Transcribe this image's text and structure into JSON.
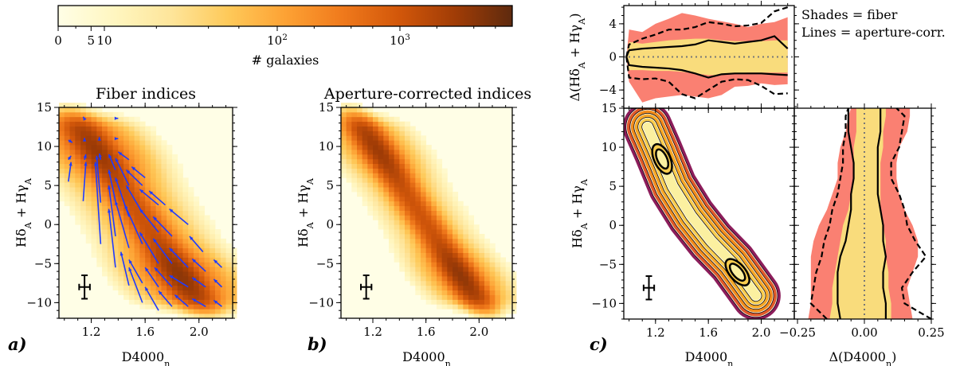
{
  "colormap": [
    "#fffee6",
    "#fff6c0",
    "#fee59a",
    "#fec959",
    "#fda234",
    "#f07a1c",
    "#d2570a",
    "#a03c06",
    "#5e2a0e"
  ],
  "colorbar": {
    "label": "# galaxies",
    "ticks": [
      {
        "value": 0,
        "label": "0"
      },
      {
        "value": 5,
        "label": "5"
      },
      {
        "value": 10,
        "label": "10"
      },
      {
        "value": 100,
        "label": "10^2"
      },
      {
        "value": 1000,
        "label": "10^3"
      }
    ],
    "max": 8000
  },
  "panel_labels": [
    "a)",
    "b)",
    "c)"
  ],
  "legend": {
    "line1": "Shades = fiber",
    "line2": "Lines = aperture-corr."
  },
  "contour_colors": [
    "#8c1d5b",
    "#e05a2a",
    "#f28c1c",
    "#f6a828",
    "#f9cd4f",
    "#fbf0a0"
  ],
  "shade_colors": {
    "outer": "#fa8072",
    "inner": "#f9dc7c"
  },
  "chart_data": [
    {
      "id": "a",
      "type": "heatmap",
      "title": "Fiber indices",
      "xlabel": "D4000_n",
      "ylabel": "Hδ_A + Hγ_A",
      "xlim": [
        0.96,
        2.25
      ],
      "ylim": [
        -12,
        15
      ],
      "xticks": [
        1.2,
        1.6,
        2.0
      ],
      "yticks": [
        -10,
        -5,
        0,
        5,
        10,
        15
      ],
      "density_peaks": [
        {
          "x": 1.2,
          "y": 10
        },
        {
          "x": 1.88,
          "y": -7
        }
      ],
      "errorbar": {
        "x": 1.15,
        "y": -8,
        "xerr": 0.04,
        "yerr": 1.5
      },
      "quiver_color": "#1f3bff",
      "quiver": [
        [
          1.03,
          5.5,
          0.02,
          2.5
        ],
        [
          1.03,
          8.3,
          0.02,
          0.5
        ],
        [
          1.03,
          10.8,
          0.03,
          -0.3
        ],
        [
          1.14,
          3,
          0.02,
          5
        ],
        [
          1.15,
          8.3,
          0.01,
          0.7
        ],
        [
          1.15,
          10.8,
          0.0,
          0.3
        ],
        [
          1.15,
          13.5,
          -0.01,
          0.3
        ],
        [
          1.27,
          -2.5,
          -0.04,
          10.5
        ],
        [
          1.27,
          2.8,
          -0.03,
          6
        ],
        [
          1.27,
          8.3,
          -0.01,
          0.8
        ],
        [
          1.26,
          11,
          0,
          0.2
        ],
        [
          1.38,
          -5.5,
          -0.05,
          7.5
        ],
        [
          1.38,
          -1.5,
          -0.05,
          6.5
        ],
        [
          1.38,
          3,
          -0.05,
          4
        ],
        [
          1.38,
          7,
          -0.05,
          2
        ],
        [
          1.38,
          11,
          0.02,
          0
        ],
        [
          1.38,
          13.6,
          0.02,
          0
        ],
        [
          1.48,
          -7.8,
          -0.06,
          4.3
        ],
        [
          1.48,
          -3,
          -0.1,
          6
        ],
        [
          1.48,
          1,
          -0.1,
          5
        ],
        [
          1.48,
          5,
          -0.1,
          3.5
        ],
        [
          1.48,
          8.3,
          -0.08,
          1
        ],
        [
          1.58,
          -10,
          -0.1,
          4.5
        ],
        [
          1.58,
          -7.5,
          -0.1,
          3
        ],
        [
          1.58,
          -2.5,
          -0.13,
          5
        ],
        [
          1.58,
          1.5,
          -0.12,
          3.5
        ],
        [
          1.58,
          5,
          -0.12,
          2
        ],
        [
          1.7,
          -11,
          -0.1,
          3
        ],
        [
          1.7,
          -8,
          -0.1,
          2.5
        ],
        [
          1.7,
          -5,
          -0.14,
          4
        ],
        [
          1.7,
          -1,
          -0.14,
          3
        ],
        [
          1.7,
          2.5,
          -0.14,
          2
        ],
        [
          1.6,
          6,
          -0.1,
          1.4
        ],
        [
          1.8,
          -10.5,
          -0.1,
          2
        ],
        [
          1.8,
          -8,
          -0.13,
          2.5
        ],
        [
          1.8,
          -5,
          -0.14,
          3.2
        ],
        [
          1.8,
          -1.5,
          -0.14,
          2.5
        ],
        [
          1.75,
          2.5,
          -0.12,
          1.8
        ],
        [
          1.92,
          -10.5,
          -0.1,
          1.5
        ],
        [
          1.92,
          -8,
          -0.14,
          1.5
        ],
        [
          1.92,
          -5.5,
          -0.14,
          2.5
        ],
        [
          1.92,
          0,
          -0.14,
          2
        ],
        [
          2.05,
          -10.5,
          -0.1,
          1
        ],
        [
          2.05,
          -8,
          -0.1,
          1.2
        ],
        [
          2.05,
          -6,
          -0.1,
          1.6
        ],
        [
          2.03,
          -3.5,
          -0.1,
          2
        ],
        [
          2.17,
          -10.5,
          -0.06,
          0.8
        ],
        [
          2.17,
          -8,
          -0.06,
          1
        ],
        [
          2.17,
          -5.5,
          -0.06,
          1
        ]
      ]
    },
    {
      "id": "b",
      "type": "heatmap",
      "title": "Aperture-corrected indices",
      "xlabel": "D4000_n",
      "ylabel": "Hδ_A + Hγ_A",
      "xlim": [
        0.96,
        2.25
      ],
      "ylim": [
        -12,
        15
      ],
      "xticks": [
        1.2,
        1.6,
        2.0
      ],
      "yticks": [
        -10,
        -5,
        0,
        5,
        10,
        15
      ],
      "density_peaks": [
        {
          "x": 1.22,
          "y": 9.5
        },
        {
          "x": 1.83,
          "y": -6
        }
      ],
      "errorbar": {
        "x": 1.15,
        "y": -8,
        "xerr": 0.04,
        "yerr": 1.5
      }
    },
    {
      "id": "c-main",
      "type": "contour",
      "xlabel": "D4000_n",
      "ylabel": "Hδ_A + Hγ_A",
      "xlim": [
        0.96,
        2.25
      ],
      "ylim": [
        -12,
        15
      ],
      "xticks": [
        1.2,
        1.6,
        2.0
      ],
      "yticks": [
        -10,
        -5,
        0,
        5,
        10,
        15
      ],
      "density_peaks": [
        {
          "x": 1.25,
          "y": 8.5
        },
        {
          "x": 1.82,
          "y": -6
        }
      ],
      "errorbar": {
        "x": 1.15,
        "y": -8,
        "xerr": 0.04,
        "yerr": 1.5
      }
    },
    {
      "id": "c-top",
      "type": "area",
      "ylabel": "Δ(Hδ_A + Hγ_A)",
      "xlim": [
        0.96,
        2.25
      ],
      "ylim": [
        -6.2,
        6.2
      ],
      "yticks": [
        -4,
        0,
        4
      ],
      "x": [
        1.0,
        1.1,
        1.2,
        1.3,
        1.4,
        1.5,
        1.6,
        1.7,
        1.8,
        1.9,
        2.0,
        2.1,
        2.2
      ],
      "shade_outer_upper": [
        3.3,
        3.0,
        4.0,
        4.6,
        5.3,
        5.0,
        4.6,
        4.3,
        4.0,
        3.6,
        4.0,
        4.2,
        4.8
      ],
      "shade_outer_lower": [
        -3,
        -5.5,
        -5,
        -4.8,
        -4.6,
        -4.8,
        -5,
        -4.6,
        -3.6,
        -3.5,
        -3.2,
        -3.4,
        -3.3
      ],
      "shade_inner_upper": [
        1.8,
        1.6,
        1.8,
        2.0,
        2.1,
        2.2,
        2.2,
        2.0,
        1.9,
        1.9,
        1.9,
        2.0,
        2.0
      ],
      "shade_inner_lower": [
        -1.6,
        -1.6,
        -1.7,
        -1.7,
        -1.8,
        -2.0,
        -2.2,
        -2.2,
        -2.0,
        -1.9,
        -1.9,
        -1.9,
        -1.9
      ],
      "solid_upper": [
        0.8,
        1.0,
        1.1,
        1.2,
        1.3,
        1.5,
        2.0,
        1.8,
        1.6,
        1.8,
        2.0,
        2.5,
        1.0
      ],
      "solid_lower": [
        -1.0,
        -1.2,
        -1.3,
        -1.4,
        -1.6,
        -2.0,
        -2.5,
        -2.1,
        -2.0,
        -2.0,
        -2.0,
        -2.1,
        -2.2
      ],
      "dashed_upper": [
        1.5,
        2.2,
        2.7,
        3.3,
        3.3,
        3.6,
        4.2,
        4.0,
        3.7,
        3.8,
        4.1,
        5.5,
        6.0
      ],
      "dashed_lower": [
        -2.5,
        -2.7,
        -2.6,
        -3.0,
        -4.5,
        -5.0,
        -4.0,
        -3.0,
        -2.7,
        -2.8,
        -3.5,
        -4.5,
        -4.4
      ]
    },
    {
      "id": "c-right",
      "type": "area",
      "xlabel": "Δ(D4000_n)",
      "xlim": [
        -0.262,
        0.25
      ],
      "ylim": [
        -12,
        15
      ],
      "xticks": [
        -0.25,
        0.0,
        0.25
      ],
      "xticklabels": [
        "−0.25",
        "0.00",
        "0.25"
      ],
      "y": [
        -12,
        -10,
        -8,
        -6,
        -4,
        -2,
        0,
        2,
        4,
        6,
        8,
        10,
        12,
        14,
        15
      ],
      "shade_outer_left": [
        -0.21,
        -0.2,
        -0.2,
        -0.2,
        -0.2,
        -0.19,
        -0.17,
        -0.14,
        -0.12,
        -0.1,
        -0.1,
        -0.09,
        -0.07,
        -0.06,
        -0.05
      ],
      "shade_outer_right": [
        0.18,
        0.17,
        0.16,
        0.18,
        0.2,
        0.2,
        0.18,
        0.15,
        0.13,
        0.12,
        0.12,
        0.13,
        0.16,
        0.17,
        0.17
      ],
      "shade_inner_left": [
        -0.13,
        -0.12,
        -0.12,
        -0.11,
        -0.1,
        -0.09,
        -0.08,
        -0.06,
        -0.05,
        -0.04,
        -0.04,
        -0.04,
        -0.03,
        -0.03,
        -0.03
      ],
      "shade_inner_right": [
        0.1,
        0.1,
        0.09,
        0.09,
        0.08,
        0.08,
        0.07,
        0.06,
        0.06,
        0.06,
        0.06,
        0.07,
        0.07,
        0.08,
        0.08
      ],
      "solid_left": [
        -0.09,
        -0.1,
        -0.1,
        -0.1,
        -0.09,
        -0.07,
        -0.06,
        -0.05,
        -0.05,
        -0.04,
        -0.04,
        -0.05,
        -0.06,
        -0.06,
        -0.06
      ],
      "solid_right": [
        0.08,
        0.08,
        0.07,
        0.07,
        0.08,
        0.07,
        0.07,
        0.06,
        0.05,
        0.05,
        0.05,
        0.05,
        0.06,
        0.06,
        0.06
      ],
      "dashed_left": [
        -0.14,
        -0.2,
        -0.19,
        -0.18,
        -0.16,
        -0.15,
        -0.13,
        -0.12,
        -0.1,
        -0.09,
        -0.08,
        -0.08,
        -0.07,
        -0.07,
        -0.06
      ],
      "dashed_right": [
        0.25,
        0.15,
        0.14,
        0.18,
        0.23,
        0.19,
        0.16,
        0.15,
        0.13,
        0.1,
        0.1,
        0.13,
        0.14,
        0.15,
        0.12
      ]
    }
  ]
}
